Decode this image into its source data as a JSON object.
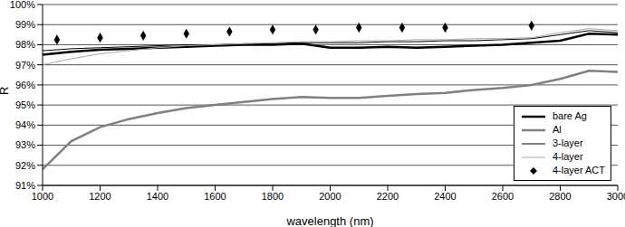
{
  "chart_data": {
    "type": "line",
    "x_label": "wavelength (nm)",
    "y_label": "R",
    "xlim": [
      1000,
      3000
    ],
    "xticks": [
      1000,
      1200,
      1400,
      1600,
      1800,
      2000,
      2200,
      2400,
      2600,
      2800,
      3000
    ],
    "ylim": [
      91,
      100
    ],
    "yticks": [
      {
        "value": 91,
        "label": "91%"
      },
      {
        "value": 92,
        "label": "92%"
      },
      {
        "value": 93,
        "label": "93%"
      },
      {
        "value": 94,
        "label": "94%"
      },
      {
        "value": 95,
        "label": "95%"
      },
      {
        "value": 96,
        "label": "96%"
      },
      {
        "value": 97,
        "label": "97%"
      },
      {
        "value": 98,
        "label": "98%"
      },
      {
        "value": 99,
        "label": "99%"
      },
      {
        "value": 100,
        "label": "100%"
      }
    ],
    "grid": true,
    "legend": "lower right",
    "series": [
      {
        "name": "bare Ag",
        "color": "#000000",
        "type": "line",
        "line_style": "thick",
        "x": [
          1000,
          1100,
          1200,
          1300,
          1400,
          1500,
          1600,
          1700,
          1800,
          1900,
          2000,
          2100,
          2200,
          2300,
          2400,
          2500,
          2600,
          2700,
          2800,
          2900,
          3000
        ],
        "values": [
          97.5,
          97.65,
          97.75,
          97.8,
          97.85,
          97.9,
          97.95,
          98.0,
          98.0,
          98.05,
          97.85,
          97.85,
          97.9,
          97.85,
          97.9,
          97.95,
          98.0,
          98.1,
          98.2,
          98.55,
          98.5
        ]
      },
      {
        "name": "Al",
        "color": "#808080",
        "type": "line",
        "line_style": "thick",
        "x": [
          1000,
          1100,
          1200,
          1300,
          1400,
          1500,
          1600,
          1700,
          1800,
          1900,
          2000,
          2100,
          2200,
          2300,
          2400,
          2500,
          2600,
          2700,
          2800,
          2900,
          3000
        ],
        "values": [
          91.8,
          93.2,
          93.9,
          94.3,
          94.6,
          94.85,
          95.0,
          95.15,
          95.3,
          95.4,
          95.35,
          95.35,
          95.45,
          95.55,
          95.6,
          95.75,
          95.85,
          96.0,
          96.3,
          96.7,
          96.65
        ]
      },
      {
        "name": "3-layer",
        "color": "#000000",
        "type": "line",
        "line_style": "thin",
        "x": [
          1000,
          1100,
          1200,
          1300,
          1400,
          1500,
          1600,
          1700,
          1800,
          1900,
          2000,
          2100,
          2200,
          2300,
          2400,
          2500,
          2600,
          2700,
          2800,
          2900,
          3000
        ],
        "values": [
          97.7,
          97.8,
          97.85,
          97.9,
          97.95,
          98.0,
          98.0,
          98.05,
          98.05,
          98.1,
          98.1,
          98.1,
          98.15,
          98.15,
          98.2,
          98.2,
          98.25,
          98.3,
          98.5,
          98.7,
          98.6
        ]
      },
      {
        "name": "4-layer",
        "color": "#a6a6a6",
        "type": "line",
        "line_style": "thin",
        "x": [
          1000,
          1100,
          1200,
          1300,
          1400,
          1500,
          1600,
          1700,
          1800,
          1900,
          2000,
          2100,
          2200,
          2300,
          2400,
          2500,
          2600,
          2700,
          2800,
          2900,
          3000
        ],
        "values": [
          97.0,
          97.3,
          97.55,
          97.7,
          97.85,
          97.95,
          98.0,
          98.05,
          98.1,
          98.15,
          98.15,
          98.2,
          98.2,
          98.25,
          98.25,
          98.3,
          98.3,
          98.35,
          98.6,
          98.8,
          98.7
        ]
      },
      {
        "name": "4-layer ACT",
        "color": "#000000",
        "type": "scatter",
        "marker": "diamond",
        "x": [
          1050,
          1200,
          1350,
          1500,
          1650,
          1800,
          1950,
          2100,
          2250,
          2400,
          2700
        ],
        "values": [
          98.25,
          98.35,
          98.45,
          98.55,
          98.65,
          98.75,
          98.75,
          98.85,
          98.85,
          98.85,
          98.95
        ]
      }
    ]
  }
}
